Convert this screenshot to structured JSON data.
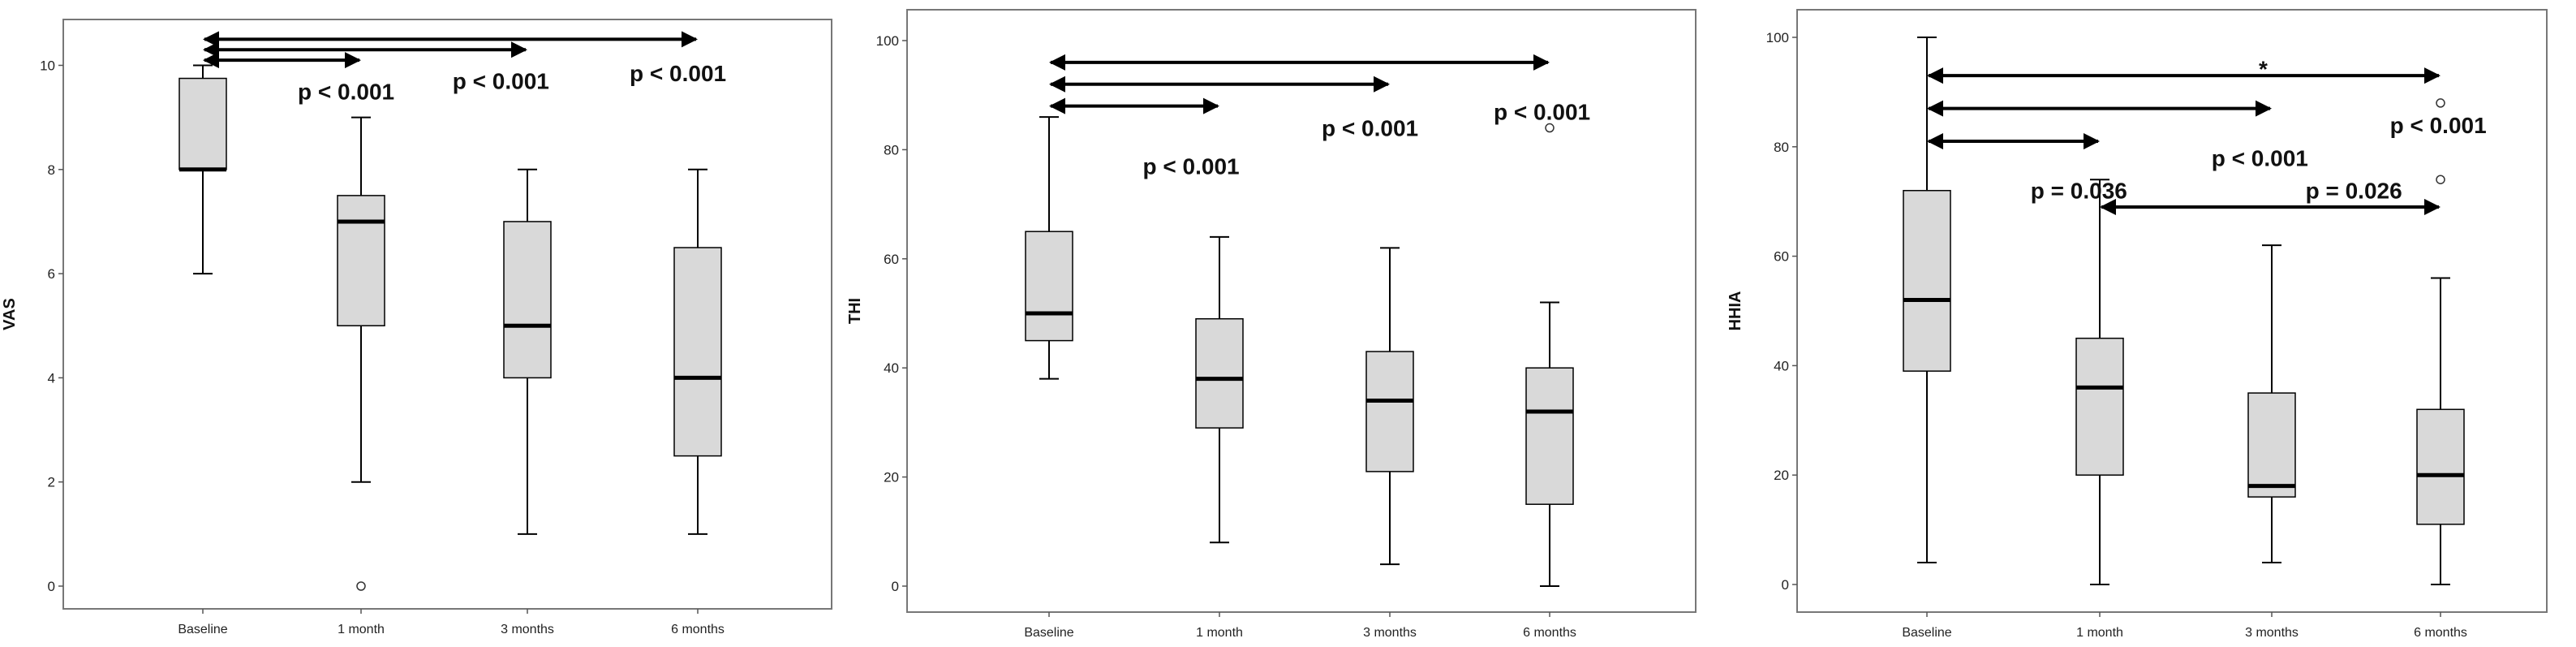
{
  "chart_data": [
    {
      "type": "box",
      "ylabel": "VAS",
      "ylim": [
        0,
        10.6
      ],
      "yticks": [
        0,
        2,
        4,
        6,
        8,
        10
      ],
      "categories": [
        "Baseline",
        "1 month",
        "3 months",
        "6 months"
      ],
      "boxes": [
        {
          "min": 6,
          "q1": 8,
          "median": 8,
          "q3": 9.75,
          "max": 10,
          "outliers": []
        },
        {
          "min": 2,
          "q1": 5,
          "median": 7,
          "q3": 7.5,
          "max": 9,
          "outliers": [
            0
          ]
        },
        {
          "min": 1,
          "q1": 4,
          "median": 5,
          "q3": 7,
          "max": 8,
          "outliers": []
        },
        {
          "min": 1,
          "q1": 2.5,
          "median": 4,
          "q3": 6.5,
          "max": 8,
          "outliers": []
        }
      ],
      "comparisons": [
        {
          "from": 0,
          "to": 1,
          "label": "p < 0.001",
          "arrow_y": 10.1,
          "label_x": 0.6,
          "label_y": 9.5
        },
        {
          "from": 0,
          "to": 2,
          "label": "p < 0.001",
          "arrow_y": 10.3,
          "label_x": 1.55,
          "label_y": 9.7
        },
        {
          "from": 0,
          "to": 3,
          "label": "p < 0.001",
          "arrow_y": 10.5,
          "label_x": 2.6,
          "label_y": 9.85
        }
      ]
    },
    {
      "type": "box",
      "ylabel": "THI",
      "ylim": [
        0,
        100
      ],
      "yticks": [
        0,
        20,
        40,
        60,
        80,
        100
      ],
      "categories": [
        "Baseline",
        "1 month",
        "3 months",
        "6 months"
      ],
      "boxes": [
        {
          "min": 38,
          "q1": 45,
          "median": 50,
          "q3": 65,
          "max": 86,
          "outliers": []
        },
        {
          "min": 8,
          "q1": 29,
          "median": 38,
          "q3": 49,
          "max": 64,
          "outliers": []
        },
        {
          "min": 4,
          "q1": 21,
          "median": 34,
          "q3": 43,
          "max": 62,
          "outliers": []
        },
        {
          "min": 0,
          "q1": 15,
          "median": 32,
          "q3": 40,
          "max": 52,
          "outliers": [
            84
          ]
        }
      ],
      "comparisons": [
        {
          "from": 0,
          "to": 1,
          "label": "p < 0.001",
          "arrow_y": 88,
          "label_x": 0.55,
          "label_y": 77
        },
        {
          "from": 0,
          "to": 2,
          "label": "p < 0.001",
          "arrow_y": 92,
          "label_x": 1.6,
          "label_y": 84
        },
        {
          "from": 0,
          "to": 3,
          "label": "p < 0.001",
          "arrow_y": 96,
          "label_x": 2.65,
          "label_y": 87
        }
      ]
    },
    {
      "type": "box",
      "ylabel": "HHIA",
      "ylim": [
        0,
        100
      ],
      "yticks": [
        0,
        20,
        40,
        60,
        80,
        100
      ],
      "categories": [
        "Baseline",
        "1 month",
        "3 months",
        "6 months"
      ],
      "boxes": [
        {
          "min": 4,
          "q1": 39,
          "median": 52,
          "q3": 72,
          "max": 100,
          "outliers": []
        },
        {
          "min": 0,
          "q1": 20,
          "median": 36,
          "q3": 45,
          "max": 74,
          "outliers": []
        },
        {
          "min": 4,
          "q1": 16,
          "median": 18,
          "q3": 35,
          "max": 62,
          "outliers": []
        },
        {
          "min": 0,
          "q1": 11,
          "median": 20,
          "q3": 32,
          "max": 56,
          "outliers": [
            74,
            88
          ]
        }
      ],
      "comparisons": [
        {
          "from": 0,
          "to": 1,
          "label": "p = 0.036",
          "arrow_y": 81,
          "label_x": 0.6,
          "label_y": 72
        },
        {
          "from": 0,
          "to": 2,
          "label": "p < 0.001",
          "arrow_y": 87,
          "label_x": 1.65,
          "label_y": 78
        },
        {
          "from": 0,
          "to": 3,
          "label": "p < 0.001",
          "arrow_y": 93,
          "label_x": 2.7,
          "label_y": 84
        },
        {
          "from": 1,
          "to": 3,
          "label": "p = 0.026",
          "arrow_y": 69,
          "label_x": 2.2,
          "label_y": 72
        }
      ],
      "star": {
        "label": "*",
        "x": 1.95,
        "y": 94
      }
    }
  ],
  "colors": {
    "box_fill": "#d9d9d9",
    "stroke": "#000000",
    "frame": "#777777"
  }
}
